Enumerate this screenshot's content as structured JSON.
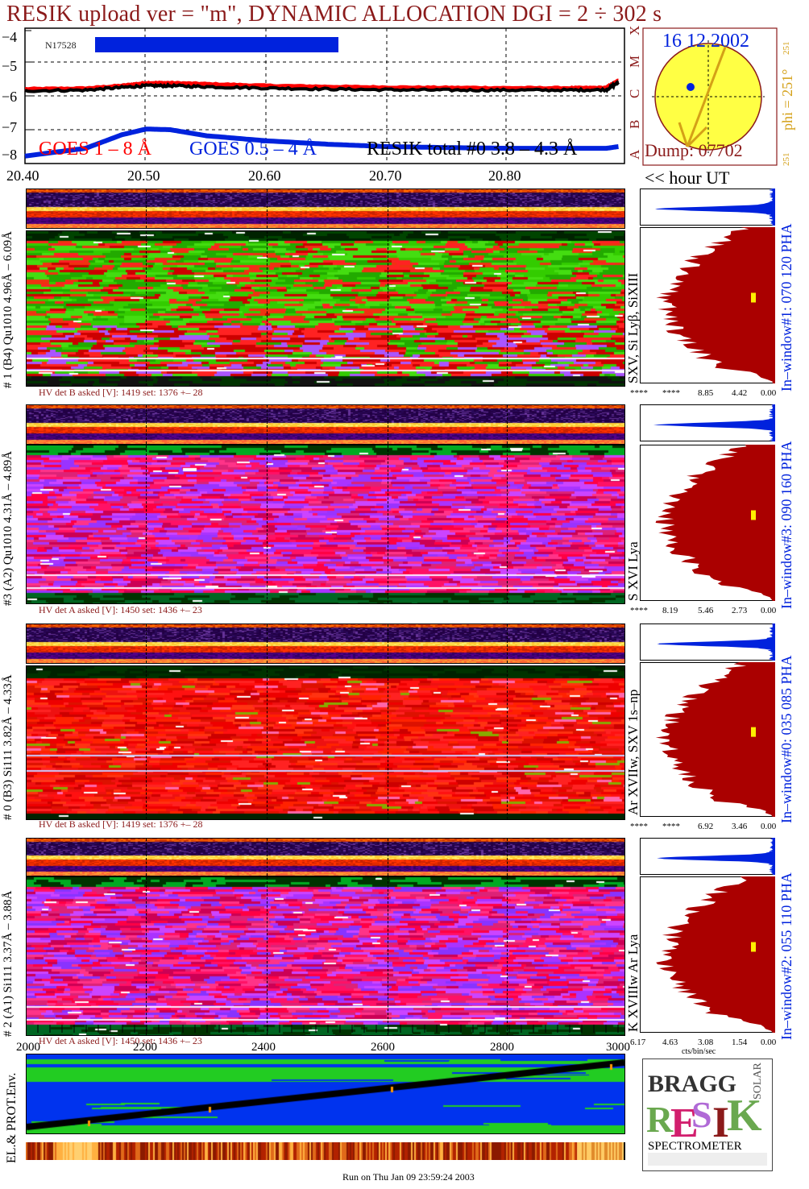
{
  "title": "RESIK upload ver = \"m\", DYNAMIC ALLOCATION  DGI =   2 ÷ 302 s",
  "goes": {
    "ylabels": [
      "−4",
      "−5",
      "−6",
      "−7",
      "−8"
    ],
    "legend_goes_long": "GOES 1 – 8 Å",
    "legend_goes_short": "GOES 0.5 – 4 Å",
    "legend_resik": "RESIK total #0  3.8 – 4.3 Å",
    "bar_label": "N17528",
    "class_letters": [
      "X",
      "M",
      "C",
      "B",
      "A"
    ],
    "colors": {
      "long": "#ff0000",
      "short": "#0022dd",
      "resik": "#000000"
    }
  },
  "time_axis": {
    "labels": [
      "20.40",
      "20.50",
      "20.60",
      "20.70",
      "20.80"
    ],
    "hour_ut": "<< hour UT"
  },
  "sun": {
    "date": "16 12 2002",
    "dump": "Dump: 07702",
    "phi": "phi = 251°",
    "phi_top": "251",
    "phi_bottom": "251"
  },
  "channels": [
    {
      "id": 1,
      "left_label": "# 1 (B4) Qu1010 4.96Å – 6.09Å",
      "line_label": "SXV, Si Lyβ, SiXIII",
      "window_label": "In–window#1:  070 120 PHA",
      "hv": "HV det B asked [V]:  1419 set:  1376 +–   28",
      "pha_ticks": [
        "****",
        "****",
        "8.85",
        "4.42",
        "0.00"
      ]
    },
    {
      "id": 3,
      "left_label": "#3 (A2) Qu1010  4.31Å – 4.89Å",
      "line_label": "S XVI Lya",
      "window_label": "In–window#3:  090 160 PHA",
      "hv": "HV det A asked [V]:  1450 set:  1436 +–   23",
      "pha_ticks": [
        "****",
        "8.19",
        "5.46",
        "2.73",
        "0.00"
      ]
    },
    {
      "id": 0,
      "left_label": "# 0 (B3) Si111  3.82Å – 4.33Å",
      "line_label": "Ar XVIIw,  SXV 1s–np",
      "window_label": "In–window#0:  035 085 PHA",
      "hv": "HV det B asked [V]:  1419 set:  1376 +–   28",
      "pha_ticks": [
        "****",
        "****",
        "6.92",
        "3.46",
        "0.00"
      ]
    },
    {
      "id": 2,
      "left_label": "# 2 (A1) Si111  3.37Å – 3.88Å",
      "line_label": "K XVIIIw  Ar Lya",
      "window_label": "In–window#2:  055 110 PHA",
      "hv": "HV det A asked [V]:  1450 set:  1436 +–   23",
      "pha_ticks": [
        "6.17",
        "4.63",
        "3.08",
        "1.54",
        "0.00"
      ],
      "pha_unit": "cts/bin/sec"
    }
  ],
  "bottom_axis": {
    "labels": [
      "2000",
      "2200",
      "2400",
      "2600",
      "2800",
      "3000"
    ]
  },
  "env_label": "EL.& PROT.Env.",
  "logo": {
    "bragg": "BRAGG",
    "solar": "SOLAR",
    "resik": "RESIK",
    "spectrometer": "SPECTROMETER"
  },
  "footer": "Run on Thu Jan 09 23:59:24 2003",
  "chart_data": {
    "type": "line",
    "title": "RESIK upload ver = \"m\", DYNAMIC ALLOCATION  DGI =   2 ÷ 302 s",
    "xlabel": "hour UT",
    "ylabel": "",
    "xlim": [
      20.4,
      20.9
    ],
    "ylim": [
      -8,
      -4
    ],
    "grid": true,
    "legend": "bottom",
    "x": [
      20.4,
      20.45,
      20.48,
      20.5,
      20.52,
      20.55,
      20.6,
      20.65,
      20.7,
      20.75,
      20.8,
      20.85,
      20.88,
      20.89
    ],
    "series": [
      {
        "name": "GOES 1 – 8 Å",
        "values": [
          -5.8,
          -5.78,
          -5.7,
          -5.62,
          -5.62,
          -5.65,
          -5.7,
          -5.73,
          -5.75,
          -5.76,
          -5.77,
          -5.77,
          -5.76,
          -5.55
        ]
      },
      {
        "name": "GOES 0.5 – 4 Å",
        "values": [
          -7.78,
          -7.55,
          -7.15,
          -6.98,
          -7.0,
          -7.18,
          -7.33,
          -7.43,
          -7.5,
          -7.53,
          -7.55,
          -7.55,
          -7.55,
          -7.5
        ]
      },
      {
        "name": "RESIK total #0  3.8 – 4.3 Å",
        "values": [
          -5.85,
          -5.83,
          -5.75,
          -5.7,
          -5.7,
          -5.73,
          -5.77,
          -5.8,
          -5.82,
          -5.83,
          -5.83,
          -5.83,
          -5.82,
          -5.6
        ]
      }
    ]
  }
}
